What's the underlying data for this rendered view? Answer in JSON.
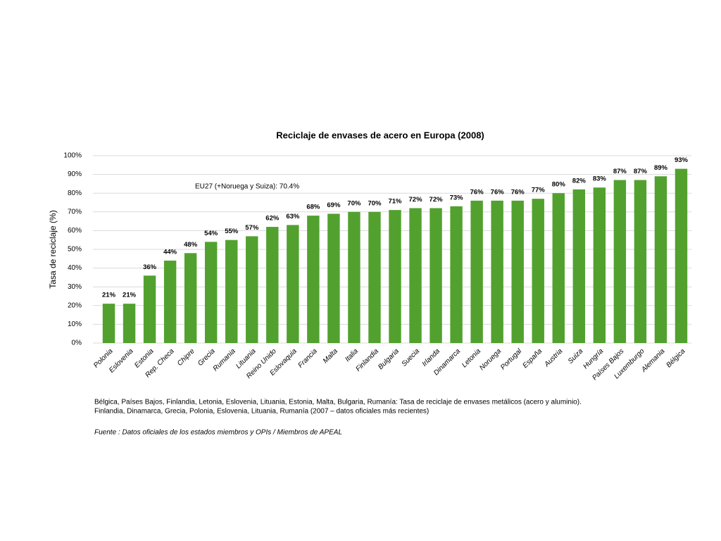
{
  "chart_data": {
    "type": "bar",
    "title": "Reciclaje de envases de acero en Europa (2008)",
    "y_label": "Tasa de reciclaje (%)",
    "annotation": "EU27 (+Noruega y Suiza): 70.4%",
    "categories": [
      "Polonia",
      "Eslovenia",
      "Estonia",
      "Rep. Checa",
      "Chipre",
      "Grecia",
      "Rumania",
      "Lituania",
      "Reino Unido",
      "Eslovaquia",
      "Francia",
      "Malta",
      "Italia",
      "Finlandia",
      "Bulgaria",
      "Suecia",
      "Irlanda",
      "Dinamarca",
      "Letonia",
      "Noruega",
      "Portugal",
      "España",
      "Austria",
      "Suiza",
      "Hungría",
      "Países Bajos",
      "Luxemburgo",
      "Alemania",
      "Bélgica"
    ],
    "values": [
      21,
      21,
      36,
      44,
      48,
      54,
      55,
      57,
      62,
      63,
      68,
      69,
      70,
      70,
      71,
      72,
      72,
      73,
      76,
      76,
      76,
      77,
      80,
      82,
      83,
      87,
      87,
      89,
      93
    ],
    "value_labels": [
      "21%",
      "21%",
      "36%",
      "44%",
      "48%",
      "54%",
      "55%",
      "57%",
      "62%",
      "63%",
      "68%",
      "69%",
      "70%",
      "70%",
      "71%",
      "72%",
      "72%",
      "73%",
      "76%",
      "76%",
      "76%",
      "77%",
      "80%",
      "82%",
      "83%",
      "87%",
      "87%",
      "89%",
      "93%"
    ],
    "color": "#52a12f",
    "ylim": [
      0,
      100
    ],
    "yticks": [
      {
        "value": 0,
        "label": "0%"
      },
      {
        "value": 10,
        "label": "10%"
      },
      {
        "value": 20,
        "label": "20%"
      },
      {
        "value": 30,
        "label": "30%"
      },
      {
        "value": 40,
        "label": "40%"
      },
      {
        "value": 50,
        "label": "50%"
      },
      {
        "value": 60,
        "label": "60%"
      },
      {
        "value": 70,
        "label": "70%"
      },
      {
        "value": 80,
        "label": "80%"
      },
      {
        "value": 90,
        "label": "90%"
      },
      {
        "value": 100,
        "label": "100%"
      }
    ],
    "grid": true,
    "notes": [
      "Bélgica, Países Bajos, Finlandia, Letonia, Eslovenia, Lituania, Estonia, Malta, Bulgaria, Rumanía: Tasa de reciclaje de envases metálicos (acero y aluminio).",
      "Finlandia, Dinamarca, Grecia, Polonia, Eslovenia, Lituania, Rumanía (2007 – datos oficiales más recientes)"
    ],
    "source": "Fuente : Datos oficiales de los estados miembros y OPIs / Miembros de APEAL"
  }
}
